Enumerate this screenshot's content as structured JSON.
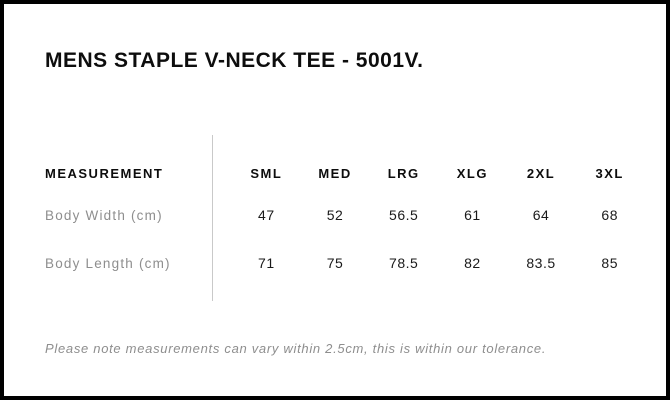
{
  "title": "MENS STAPLE V-NECK TEE - 5001V.",
  "table": {
    "header_label": "MEASUREMENT",
    "columns": [
      "SML",
      "MED",
      "LRG",
      "XLG",
      "2XL",
      "3XL"
    ],
    "rows": [
      {
        "label": "Body Width (cm)",
        "values": [
          "47",
          "52",
          "56.5",
          "61",
          "64",
          "68"
        ]
      },
      {
        "label": "Body Length (cm)",
        "values": [
          "71",
          "75",
          "78.5",
          "82",
          "83.5",
          "85"
        ]
      }
    ]
  },
  "note": "Please note measurements can vary within 2.5cm, this is within our tolerance.",
  "colors": {
    "border": "#000000",
    "background": "#ffffff",
    "heading_text": "#0d0d0d",
    "value_text": "#1a1a1a",
    "muted_text": "#8e8e8e",
    "divider": "#c9c9c9"
  }
}
